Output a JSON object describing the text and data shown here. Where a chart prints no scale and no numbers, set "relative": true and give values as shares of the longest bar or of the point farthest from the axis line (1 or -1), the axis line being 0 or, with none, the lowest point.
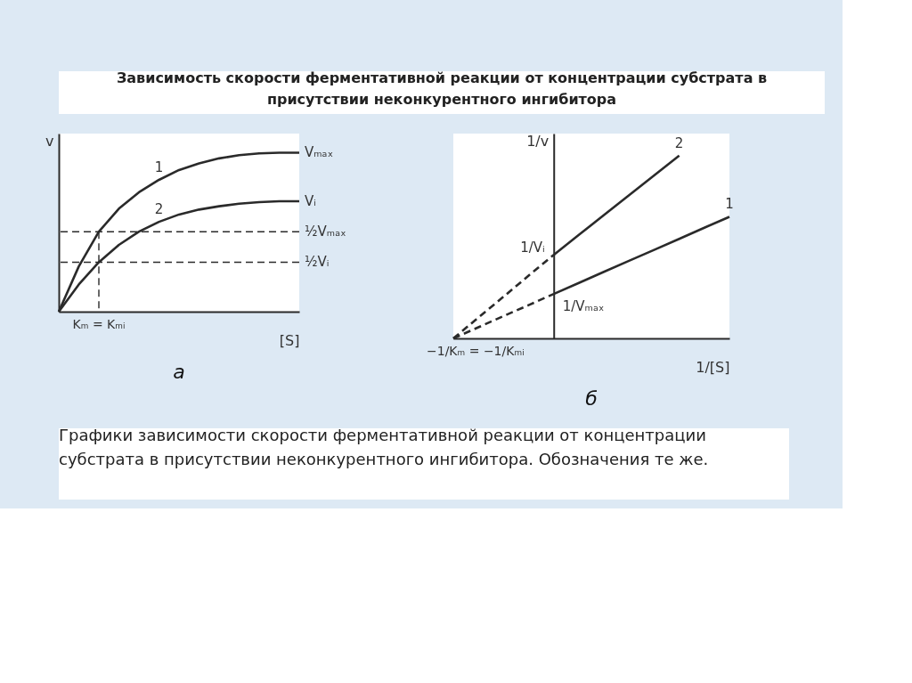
{
  "chart_data": [
    {
      "type": "line",
      "title": "а",
      "relative": true,
      "xlabel": "[S]",
      "ylabel": "v",
      "categories": [
        null,
        null,
        null,
        null,
        null,
        null,
        null,
        null,
        null,
        null,
        null,
        null,
        null
      ],
      "series": [
        {
          "name": "1",
          "color": "#2a2a2a",
          "values": [
            0,
            0.285,
            0.503,
            0.648,
            0.751,
            0.829,
            0.891,
            0.933,
            0.964,
            0.984,
            0.995,
            1,
            1
          ]
        },
        {
          "name": "2",
          "color": "#2a2a2a",
          "values": [
            0,
            0.171,
            0.311,
            0.42,
            0.503,
            0.565,
            0.611,
            0.642,
            0.663,
            0.679,
            0.689,
            0.694,
            0.694
          ]
        }
      ],
      "ref_lines": [
        {
          "axis": "y",
          "value": 0.503,
          "label": "½Vₘₐₓ",
          "line_style": "dashed"
        },
        {
          "axis": "y",
          "value": 0.311,
          "label": "½Vᵢ",
          "line_style": "dashed"
        }
      ],
      "annotations": [
        "Зависимость скорости ферментативной реакции от концентрации субстрата в присутствии неконкурентного ингибитора",
        "Графики зависимости скорости ферментативной реакции от концентрации субстрата в присутствии неконкурентного ингибитора. Обозначения те же.",
        "Vₘₐₓ",
        "Vᵢ",
        "Kₘ = Kₘᵢ"
      ]
    },
    {
      "type": "line",
      "title": "б",
      "relative": true,
      "xlabel": "1/[S]",
      "ylabel": "1/v",
      "categories": [
        null,
        null,
        null,
        null,
        null,
        null,
        null,
        null,
        null,
        null,
        null,
        null
      ],
      "series": [
        {
          "name": "2",
          "color": "#2a2a2a",
          "values": [
            null,
            null,
            null,
            null,
            0.457,
            0.566,
            0.674,
            0.783,
            0.891,
            1.0,
            null,
            null
          ]
        },
        {
          "color": "#2a2a2a",
          "line_style": "dashed",
          "values": [
            0,
            0.114,
            0.228,
            0.343,
            0.457,
            null,
            null,
            null,
            null,
            null,
            null,
            null
          ]
        },
        {
          "name": "1",
          "color": "#2a2a2a",
          "values": [
            null,
            null,
            null,
            null,
            0.243,
            0.303,
            0.364,
            0.424,
            0.484,
            0.544,
            0.605,
            0.665
          ]
        },
        {
          "color": "#2a2a2a",
          "line_style": "dashed",
          "values": [
            0,
            0.061,
            0.122,
            0.182,
            0.243,
            null,
            null,
            null,
            null,
            null,
            null,
            null
          ]
        }
      ],
      "annotations": [
        "1/Vᵢ",
        "1/Vₘₐₓ",
        "−1/Kₘ = −1/Kₘᵢ"
      ]
    }
  ]
}
